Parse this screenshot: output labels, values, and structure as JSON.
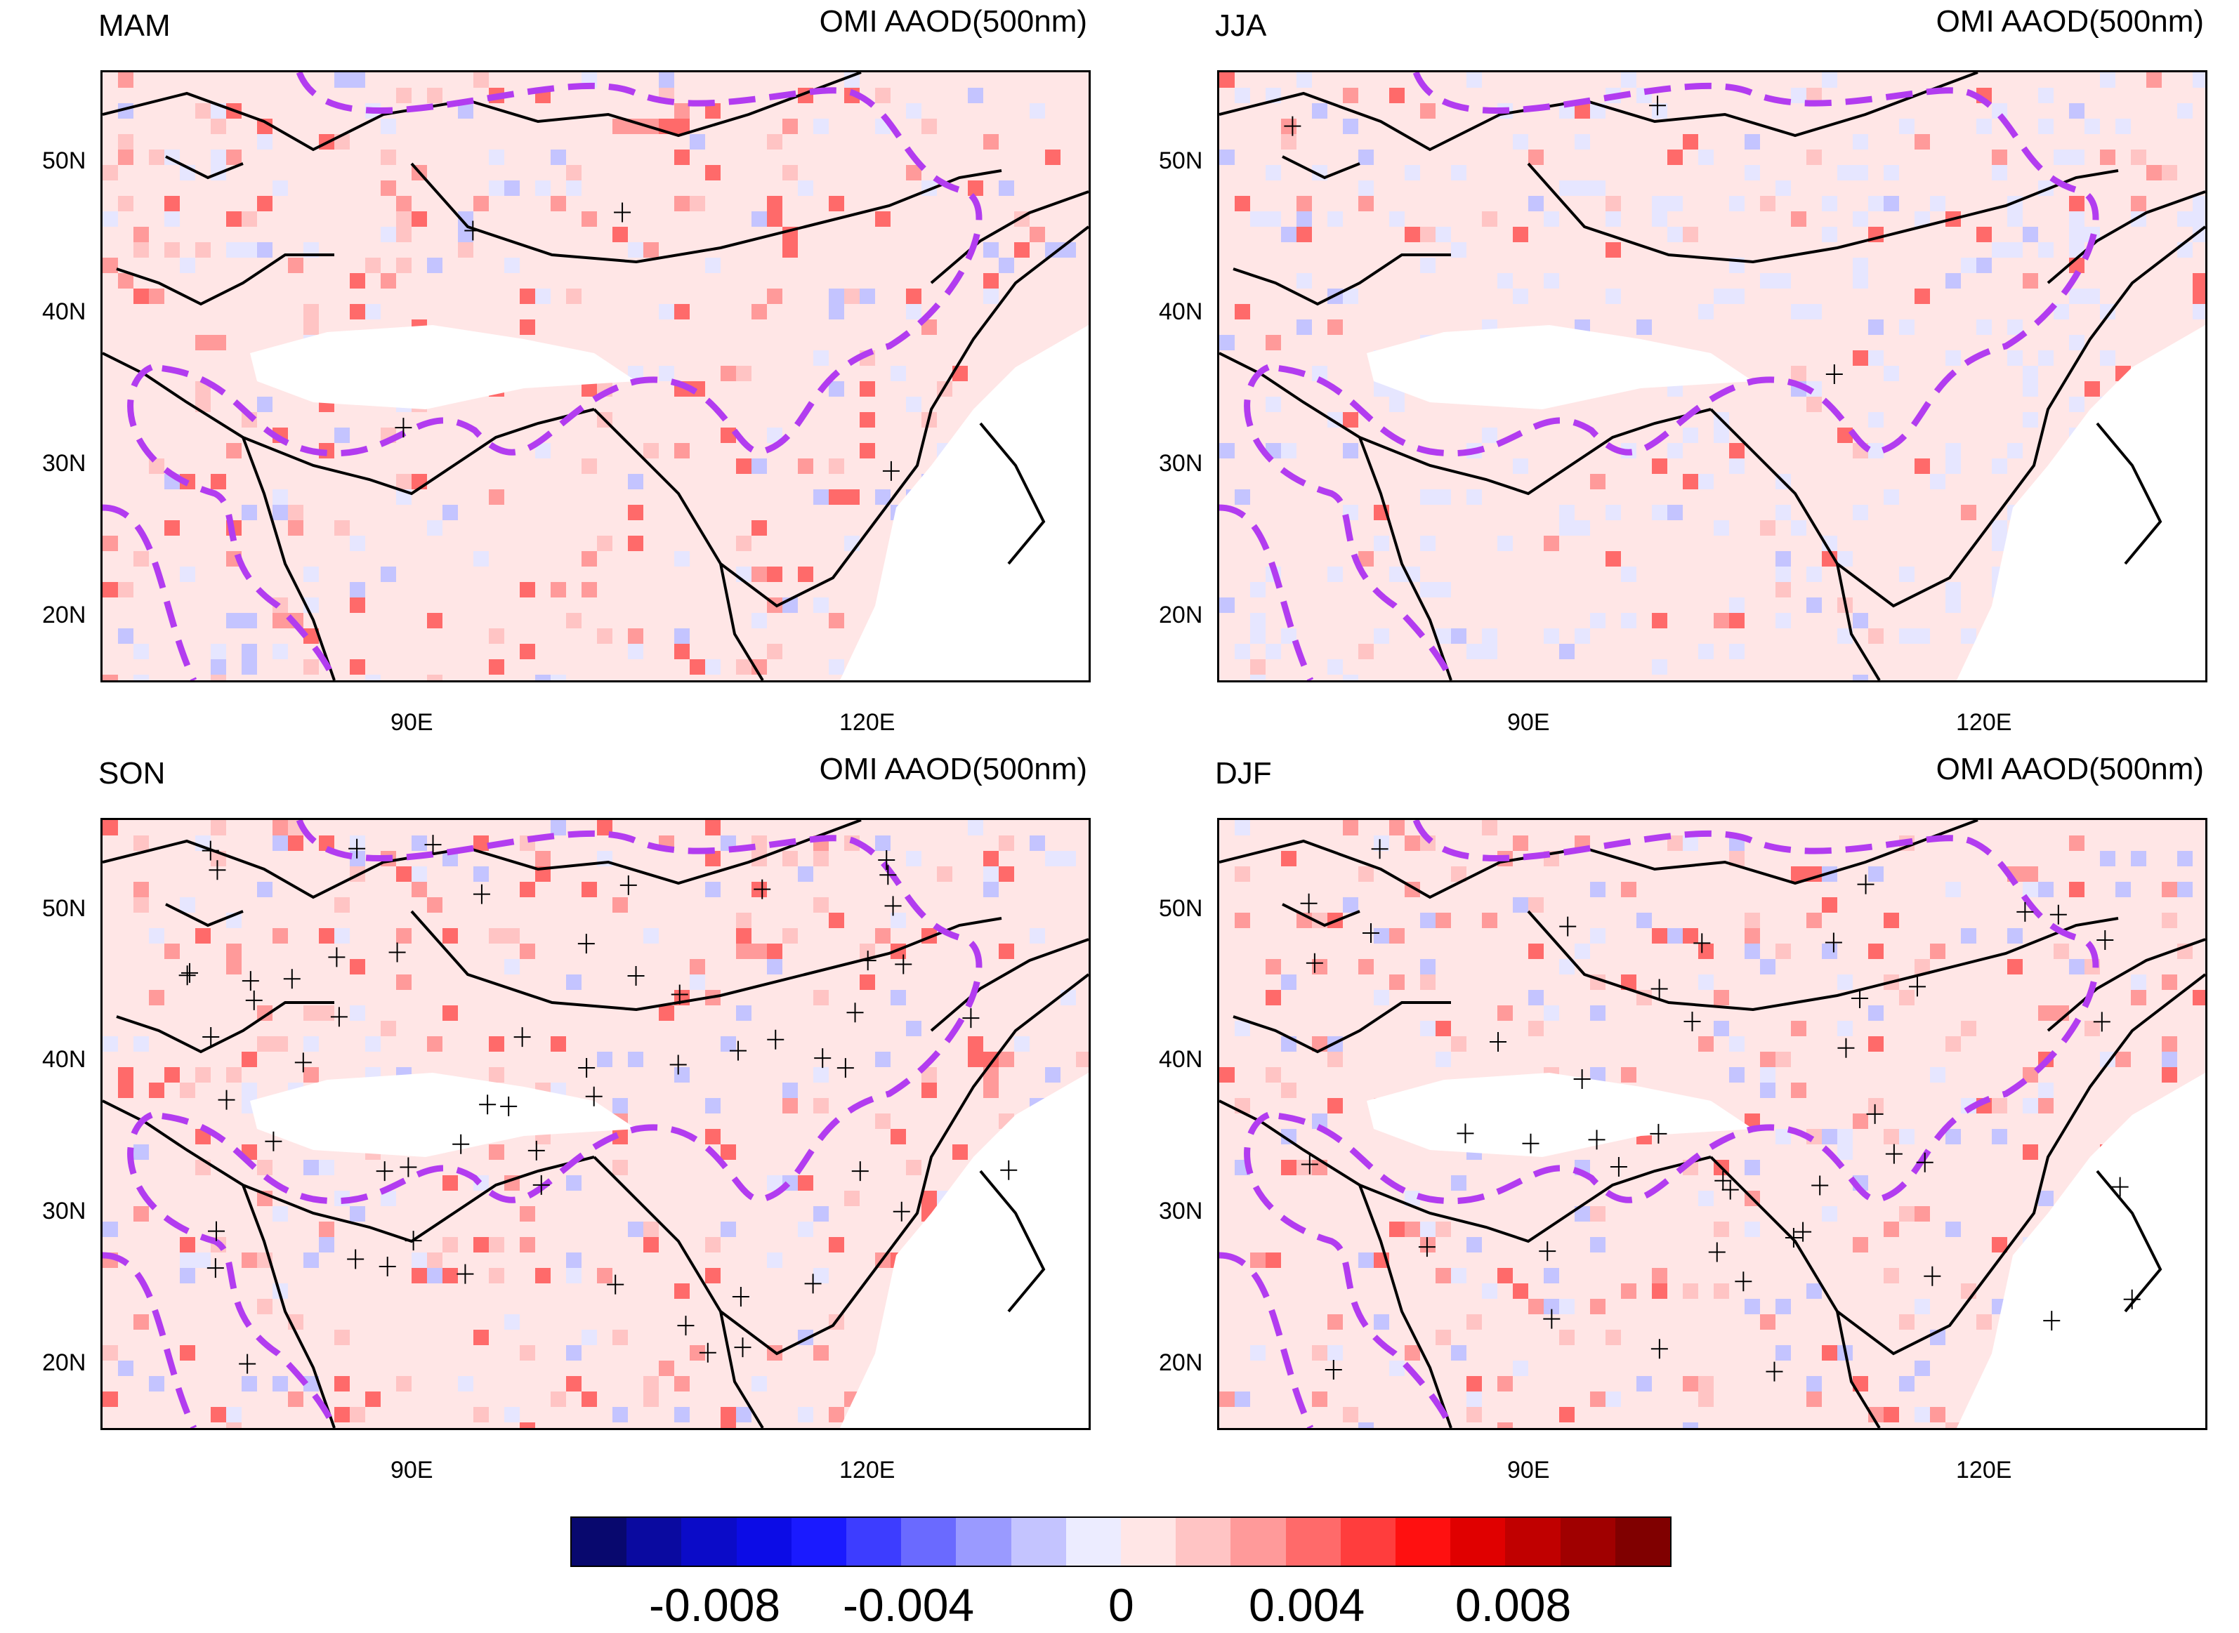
{
  "panels": [
    {
      "id": "mam",
      "season": "MAM",
      "variable": "OMI AAOD(500nm)"
    },
    {
      "id": "jja",
      "season": "JJA",
      "variable": "OMI AAOD(500nm)"
    },
    {
      "id": "son",
      "season": "SON",
      "variable": "OMI AAOD(500nm)"
    },
    {
      "id": "djf",
      "season": "DJF",
      "variable": "OMI AAOD(500nm)"
    }
  ],
  "axes": {
    "lat_labels": [
      "50N",
      "40N",
      "30N",
      "20N"
    ],
    "lon_labels": [
      "90E",
      "120E"
    ],
    "lat_range": [
      15,
      55
    ],
    "lon_range": [
      70,
      136
    ]
  },
  "colorbar": {
    "colors": [
      "#08086e",
      "#0a0aa0",
      "#0b0bc8",
      "#0c0ce6",
      "#1a1aff",
      "#3d3dff",
      "#6a6aff",
      "#9a9aff",
      "#c4c4ff",
      "#ececff",
      "#ffe6e6",
      "#ffc4c4",
      "#ff9a9a",
      "#ff6a6a",
      "#ff3d3d",
      "#ff1010",
      "#e00000",
      "#c00000",
      "#a00000",
      "#800000"
    ],
    "tick_labels": [
      "-0.008",
      "-0.004",
      "0",
      "0.004",
      "0.008"
    ]
  },
  "style": {
    "neutral_positive": "#ffe6e6",
    "neutral_negative": "#e6e6ff",
    "boundary_color": "#b23cf0"
  }
}
